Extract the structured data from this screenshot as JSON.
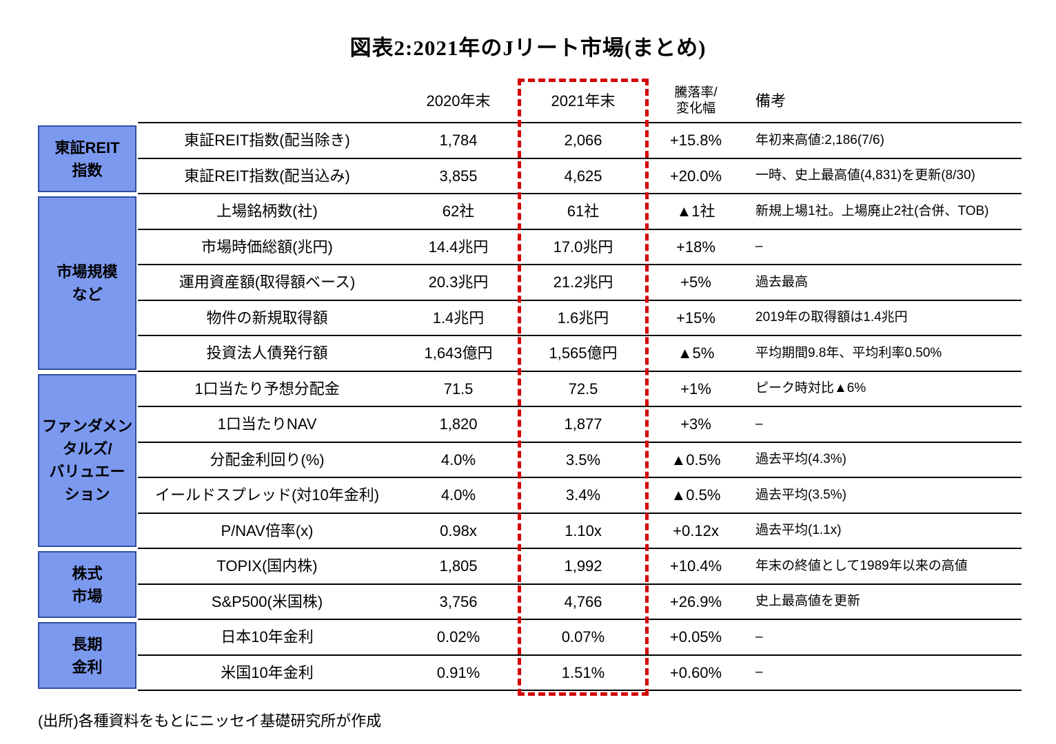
{
  "title": "図表2:2021年のJリート市場(まとめ)",
  "source": "(出所)各種資料をもとにニッセイ基礎研究所が作成",
  "header": {
    "col_2020": "2020年末",
    "col_2021": "2021年末",
    "col_change": "騰落率/\n変化幅",
    "col_note": "備考"
  },
  "colors": {
    "group_fill": "#7C99F0",
    "group_border": "#2e4d9e",
    "highlight_red": "#d40000",
    "line_black": "#000000"
  },
  "highlight": {
    "column": "2021年末",
    "style": "red-dashed-box"
  },
  "groups": [
    {
      "label": "東証REIT\n指数",
      "rows": [
        {
          "name": "東証REIT指数(配当除き)",
          "v2020": "1,784",
          "v2021": "2,066",
          "change": "+15.8%",
          "note": "年初来高値:2,186(7/6)"
        },
        {
          "name": "東証REIT指数(配当込み)",
          "v2020": "3,855",
          "v2021": "4,625",
          "change": "+20.0%",
          "note": "一時、史上最高値(4,831)を更新(8/30)"
        }
      ]
    },
    {
      "label": "市場規模\nなど",
      "rows": [
        {
          "name": "上場銘柄数(社)",
          "v2020": "62社",
          "v2021": "61社",
          "change": "▲1社",
          "note": "新規上場1社。上場廃止2社(合併、TOB)"
        },
        {
          "name": "市場時価総額(兆円)",
          "v2020": "14.4兆円",
          "v2021": "17.0兆円",
          "change": "+18%",
          "note": "–"
        },
        {
          "name": "運用資産額(取得額ベース)",
          "v2020": "20.3兆円",
          "v2021": "21.2兆円",
          "change": "+5%",
          "note": "過去最高"
        },
        {
          "name": "物件の新規取得額",
          "v2020": "1.4兆円",
          "v2021": "1.6兆円",
          "change": "+15%",
          "note": "2019年の取得額は1.4兆円"
        },
        {
          "name": "投資法人債発行額",
          "v2020": "1,643億円",
          "v2021": "1,565億円",
          "change": "▲5%",
          "note": "平均期間9.8年、平均利率0.50%"
        }
      ]
    },
    {
      "label": "ファンダメン\nタルズ/\nバリュエー\nション",
      "rows": [
        {
          "name": "1口当たり予想分配金",
          "v2020": "71.5",
          "v2021": "72.5",
          "change": "+1%",
          "note": "ピーク時対比▲6%"
        },
        {
          "name": "1口当たりNAV",
          "v2020": "1,820",
          "v2021": "1,877",
          "change": "+3%",
          "note": "–"
        },
        {
          "name": "分配金利回り(%)",
          "v2020": "4.0%",
          "v2021": "3.5%",
          "change": "▲0.5%",
          "note": "過去平均(4.3%)"
        },
        {
          "name": "イールドスプレッド(対10年金利)",
          "v2020": "4.0%",
          "v2021": "3.4%",
          "change": "▲0.5%",
          "note": "過去平均(3.5%)"
        },
        {
          "name": "P/NAV倍率(x)",
          "v2020": "0.98x",
          "v2021": "1.10x",
          "change": "+0.12x",
          "note": "過去平均(1.1x)"
        }
      ]
    },
    {
      "label": "株式\n市場",
      "rows": [
        {
          "name": "TOPIX(国内株)",
          "v2020": "1,805",
          "v2021": "1,992",
          "change": "+10.4%",
          "note": "年末の終値として1989年以来の高値"
        },
        {
          "name": "S&P500(米国株)",
          "v2020": "3,756",
          "v2021": "4,766",
          "change": "+26.9%",
          "note": "史上最高値を更新"
        }
      ]
    },
    {
      "label": "長期\n金利",
      "rows": [
        {
          "name": "日本10年金利",
          "v2020": "0.02%",
          "v2021": "0.07%",
          "change": "+0.05%",
          "note": "–"
        },
        {
          "name": "米国10年金利",
          "v2020": "0.91%",
          "v2021": "1.51%",
          "change": "+0.60%",
          "note": "–"
        }
      ]
    }
  ]
}
